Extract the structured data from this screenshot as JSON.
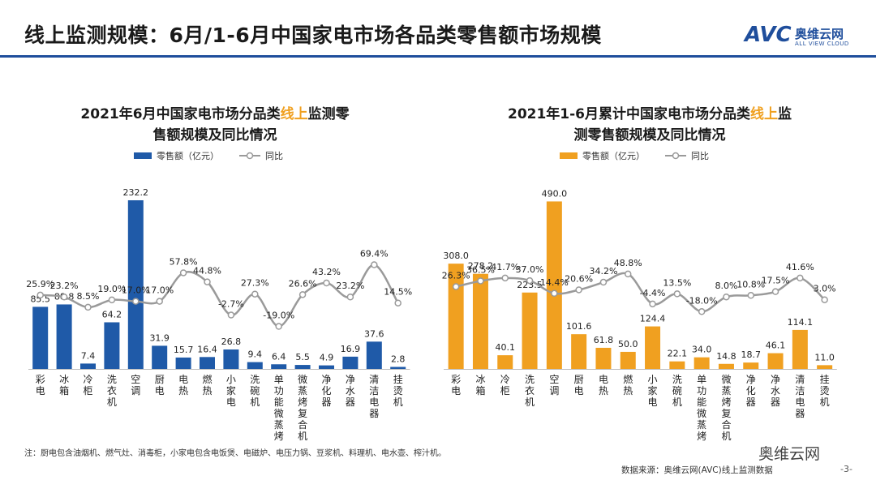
{
  "page": {
    "title": "线上监测规模：6月/1-6月中国家电市场各品类零售额市场规模",
    "logo_mark": "AVC",
    "logo_cn": "奥维云网",
    "logo_en": "ALL VIEW CLOUD",
    "note": "注：厨电包含油烟机、燃气灶、消毒柜，小家电包含电饭煲、电磁炉、电压力锅、豆浆机、料理机、电水壶、榨汁机。",
    "source": "数据来源：奥维云网(AVC)线上监测数据",
    "wechat": "奥维云网",
    "page_number": "-3-",
    "colors": {
      "primary": "#1f4e9c",
      "accent": "#f0a020",
      "line": "#9a9a9a"
    }
  },
  "chart_data": [
    {
      "type": "bar",
      "title_parts": [
        "2021年6月中国家电市场分品类",
        "线上",
        "监测零售额规模及同比情况"
      ],
      "title_line1_tail": "监测零",
      "title_line2": "售额规模及同比情况",
      "legend_bar": "零售额（亿元）",
      "legend_line": "同比",
      "bar_color": "#1f5aa8",
      "categories": [
        "彩电",
        "冰箱",
        "冷柜",
        "洗衣机",
        "空调",
        "厨电",
        "电热",
        "燃热",
        "小家电",
        "洗碗机",
        "单功能微蒸烤",
        "微蒸烤复合机",
        "净化器",
        "净水器",
        "清洁电器",
        "挂烫机"
      ],
      "values": [
        85.5,
        88.8,
        7.4,
        64.2,
        232.2,
        31.9,
        15.7,
        16.4,
        26.8,
        9.4,
        6.4,
        5.5,
        4.9,
        16.9,
        37.6,
        2.8
      ],
      "value_labels": [
        "85.5",
        "88.8",
        "7.4",
        "64.2",
        "232.2",
        "31.9",
        "15.7",
        "16.4",
        "26.8",
        "9.4",
        "6.4",
        "5.5",
        "4.9",
        "16.9",
        "37.6",
        "2.8"
      ],
      "yoy": [
        25.9,
        23.2,
        8.5,
        19.0,
        17.0,
        17.0,
        57.8,
        44.8,
        -2.7,
        27.3,
        -19.0,
        26.6,
        43.2,
        23.2,
        69.4,
        14.5
      ],
      "yoy_labels": [
        "25.9%",
        "23.2%",
        "8.5%",
        "19.0%",
        "17.0%",
        "17.0%",
        "57.8%",
        "44.8%",
        "-2.7%",
        "27.3%",
        "-19.0%",
        "26.6%",
        "43.2%",
        "23.2%",
        "69.4%",
        "14.5%"
      ],
      "ylim": [
        0,
        240
      ],
      "yoy_lim": [
        -80,
        170
      ]
    },
    {
      "type": "bar",
      "title_line1_head": "2021年1-6月累计中国家电市场分品类",
      "title_line1_hl": "线上",
      "title_line1_tail": "监",
      "title_line2": "测零售额规模及同比情况",
      "legend_bar": "零售额（亿元）",
      "legend_line": "同比",
      "bar_color": "#f0a020",
      "categories": [
        "彩电",
        "冰箱",
        "冷柜",
        "洗衣机",
        "空调",
        "厨电",
        "电热",
        "燃热",
        "小家电",
        "洗碗机",
        "单功能微蒸烤",
        "微蒸烤复合机",
        "净化器",
        "净水器",
        "清洁电器",
        "挂烫机"
      ],
      "values": [
        308.0,
        278.2,
        40.1,
        223.5,
        490.0,
        101.6,
        61.8,
        50.0,
        124.4,
        22.1,
        34.0,
        14.8,
        18.7,
        46.1,
        114.1,
        11.0
      ],
      "value_labels": [
        "308.0",
        "278.2",
        "40.1",
        "223.5",
        "490.0",
        "101.6",
        "61.8",
        "50.0",
        "124.4",
        "22.1",
        "34.0",
        "14.8",
        "18.7",
        "46.1",
        "114.1",
        "11.0"
      ],
      "yoy": [
        26.3,
        36.5,
        41.7,
        37.0,
        14.4,
        20.6,
        34.2,
        48.8,
        -4.4,
        13.5,
        -18.0,
        8.0,
        10.8,
        17.5,
        41.6,
        3.0
      ],
      "yoy_labels": [
        "26.3%",
        "36.5%",
        "41.7%",
        "37.0%",
        "14.4%",
        "20.6%",
        "34.2%",
        "48.8%",
        "-4.4%",
        "13.5%",
        "-18.0%",
        "8.0%",
        "10.8%",
        "17.5%",
        "41.6%",
        "3.0%"
      ],
      "ylim": [
        0,
        510
      ],
      "yoy_lim": [
        -120,
        190
      ]
    }
  ]
}
